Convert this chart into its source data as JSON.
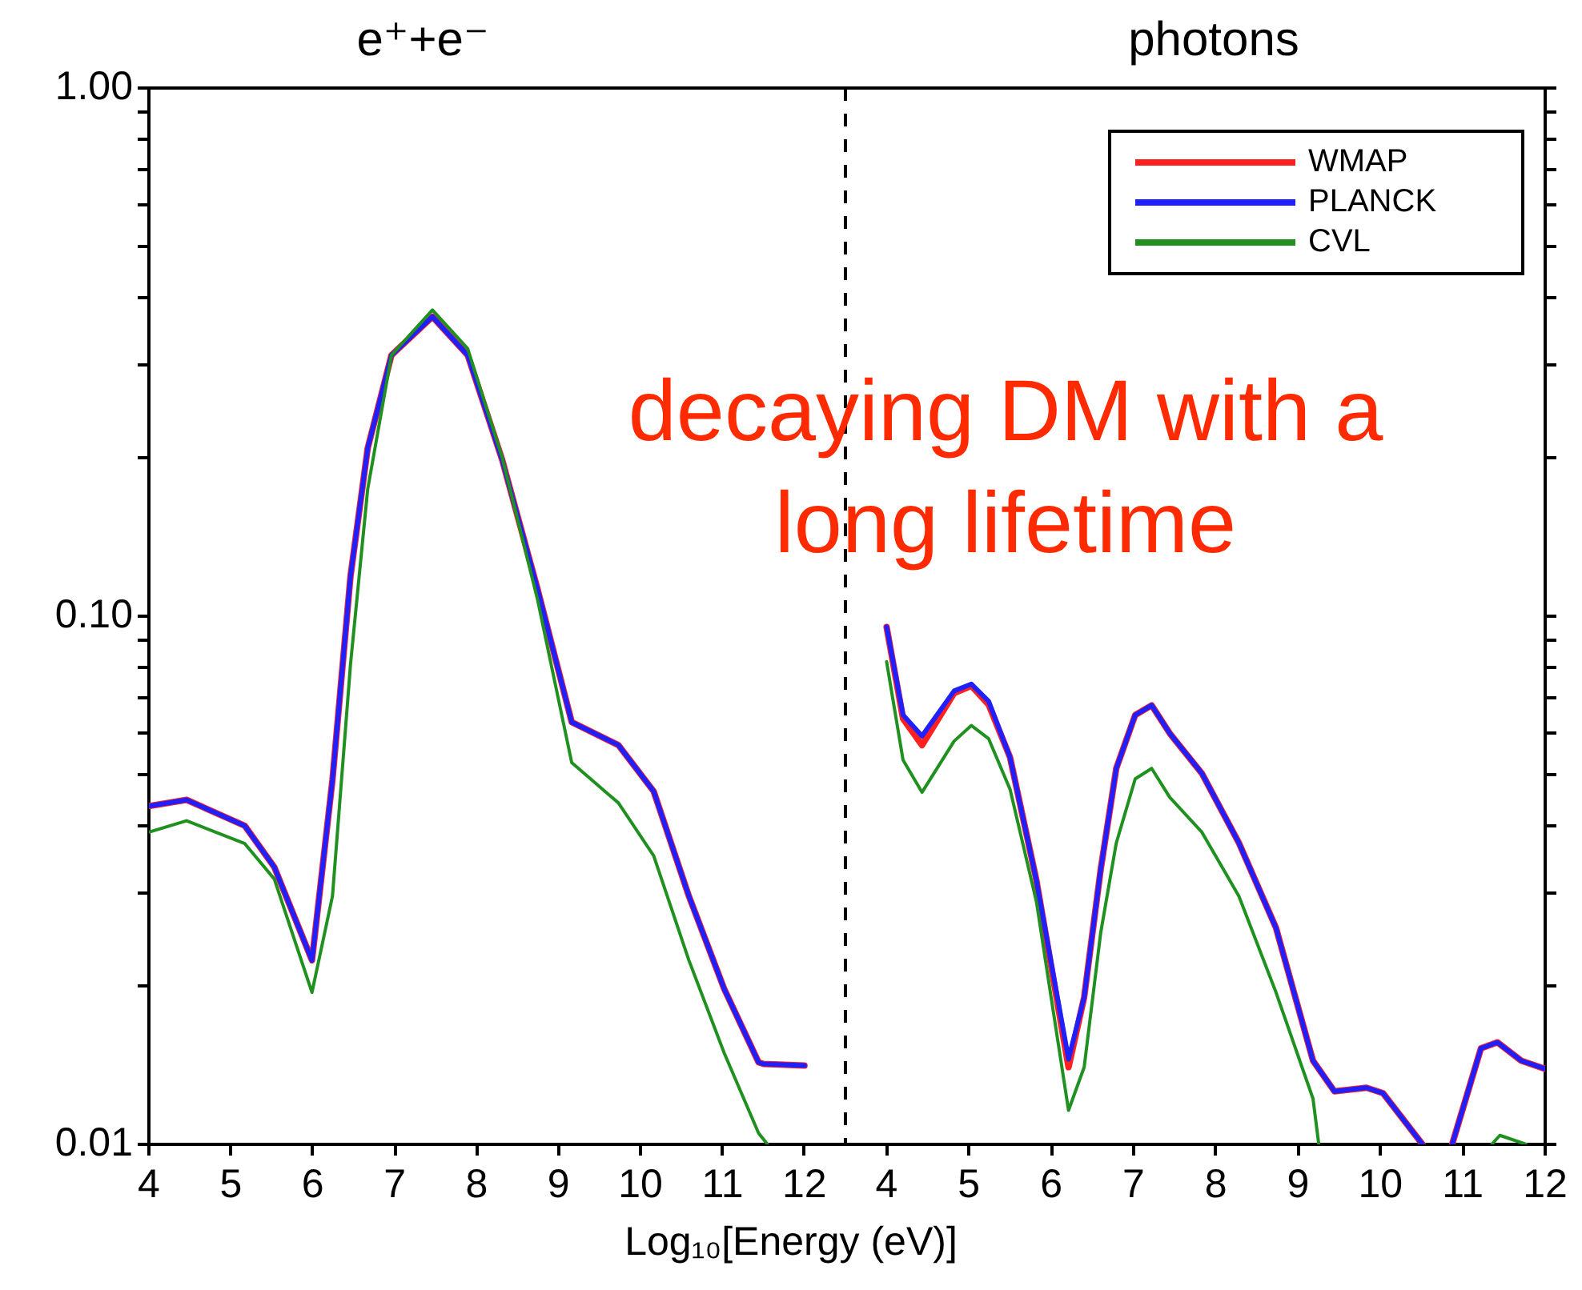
{
  "chart_data": [
    {
      "type": "line",
      "title": "e⁺+e⁻",
      "xlabel": "Log₁₀[Energy (eV)]",
      "log": "y",
      "xlim": [
        4,
        12.5
      ],
      "xticks": [
        4,
        5,
        6,
        7,
        8,
        9,
        10,
        11,
        12
      ],
      "ylim": [
        0.01,
        1
      ],
      "yticks": [
        0.01,
        {
          "value": 0.02,
          "label": null
        },
        {
          "value": 0.03,
          "label": null
        },
        {
          "value": 0.04,
          "label": null
        },
        {
          "value": 0.05,
          "label": null
        },
        {
          "value": 0.06,
          "label": null
        },
        {
          "value": 0.07,
          "label": null
        },
        {
          "value": 0.08,
          "label": null
        },
        {
          "value": 0.09,
          "label": null
        },
        {
          "value": 0.1,
          "label": "0.10"
        },
        {
          "value": 0.2,
          "label": null
        },
        {
          "value": 0.3,
          "label": null
        },
        {
          "value": 0.4,
          "label": null
        },
        {
          "value": 0.5,
          "label": null
        },
        {
          "value": 0.6,
          "label": null
        },
        {
          "value": 0.7,
          "label": null
        },
        {
          "value": 0.8,
          "label": null
        },
        {
          "value": 0.9,
          "label": null
        },
        {
          "value": 1,
          "label": "1.00"
        }
      ],
      "ref_lines": [
        {
          "axis": "x",
          "value": 12.5,
          "color": "#000000",
          "line_style": "dashed"
        }
      ],
      "series": [
        {
          "color": "#ff2020",
          "x": [
            4,
            4.46,
            5.17,
            5.53,
            5.99,
            6.24,
            6.46,
            6.67,
            6.96,
            7.46,
            7.89,
            8.31,
            8.74,
            9.16,
            9.73,
            10.16,
            10.59,
            11.02,
            11.44,
            11.5,
            12
          ],
          "values": [
            0.0437,
            0.0449,
            0.0401,
            0.0335,
            0.0223,
            0.049,
            0.119,
            0.208,
            0.312,
            0.369,
            0.312,
            0.198,
            0.113,
            0.063,
            0.057,
            0.0466,
            0.0295,
            0.0197,
            0.0143,
            0.0142,
            0.0141
          ]
        },
        {
          "color": "#2020ff",
          "x": [
            4,
            4.46,
            5.17,
            5.53,
            5.99,
            6.24,
            6.46,
            6.67,
            6.96,
            7.46,
            7.89,
            8.31,
            8.74,
            9.16,
            9.73,
            10.16,
            10.59,
            11.02,
            11.44,
            11.5,
            12
          ],
          "values": [
            0.0437,
            0.0449,
            0.0401,
            0.0335,
            0.0223,
            0.049,
            0.119,
            0.208,
            0.312,
            0.369,
            0.312,
            0.198,
            0.113,
            0.063,
            0.057,
            0.0466,
            0.0295,
            0.0197,
            0.0143,
            0.0142,
            0.0141
          ]
        },
        {
          "color": "#209020",
          "x": [
            4,
            4.46,
            5.17,
            5.53,
            5.99,
            6.24,
            6.46,
            6.67,
            6.96,
            7.46,
            7.89,
            8.31,
            8.74,
            9.16,
            9.73,
            10.16,
            10.59,
            11.02,
            11.44,
            11.55
          ],
          "values": [
            0.039,
            0.041,
            0.0371,
            0.0318,
            0.0194,
            0.0295,
            0.081,
            0.174,
            0.312,
            0.38,
            0.321,
            0.2,
            0.108,
            0.0528,
            0.0443,
            0.0352,
            0.0223,
            0.0149,
            0.0105,
            0.01
          ]
        }
      ]
    },
    {
      "type": "line",
      "title": "photons",
      "log": "y",
      "xlim": [
        3.5,
        12
      ],
      "xticks": [
        4,
        5,
        6,
        7,
        8,
        9,
        10,
        11,
        12
      ],
      "ylim": [
        0.01,
        1
      ],
      "tick_labels": "x",
      "legend": "top right",
      "yticks": [
        {
          "value": 0.01,
          "label": null
        },
        {
          "value": 0.02,
          "label": null
        },
        {
          "value": 0.03,
          "label": null
        },
        {
          "value": 0.04,
          "label": null
        },
        {
          "value": 0.05,
          "label": null
        },
        {
          "value": 0.06,
          "label": null
        },
        {
          "value": 0.07,
          "label": null
        },
        {
          "value": 0.08,
          "label": null
        },
        {
          "value": 0.09,
          "label": null
        },
        {
          "value": 0.1,
          "label": null
        },
        {
          "value": 0.2,
          "label": null
        },
        {
          "value": 0.3,
          "label": null
        },
        {
          "value": 0.4,
          "label": null
        },
        {
          "value": 0.5,
          "label": null
        },
        {
          "value": 0.6,
          "label": null
        },
        {
          "value": 0.7,
          "label": null
        },
        {
          "value": 0.8,
          "label": null
        },
        {
          "value": 0.9,
          "label": null
        },
        {
          "value": 1,
          "label": null
        }
      ],
      "annotations": [
        "decaying DM with a long lifetime"
      ],
      "series": [
        {
          "name": "WMAP",
          "color": "#ff2020",
          "x": [
            4,
            4.2,
            4.43,
            4.82,
            5.03,
            5.24,
            5.5,
            5.82,
            6.21,
            6.4,
            6.6,
            6.79,
            7.02,
            7.22,
            7.44,
            7.83,
            8.28,
            8.73,
            9.18,
            9.44,
            9.83,
            10.03,
            10.51,
            10.7,
            10.87,
            11.22,
            11.42,
            11.71,
            12
          ],
          "values": [
            0.0954,
            0.064,
            0.057,
            0.0715,
            0.0738,
            0.068,
            0.054,
            0.0316,
            0.014,
            0.019,
            0.0331,
            0.0515,
            0.065,
            0.0678,
            0.06,
            0.0504,
            0.0372,
            0.0257,
            0.0144,
            0.0126,
            0.0128,
            0.0125,
            0.01,
            null,
            0.01,
            0.0152,
            0.0156,
            0.0144,
            0.0139
          ]
        },
        {
          "name": "PLANCK",
          "color": "#2020ff",
          "x": [
            4,
            4.2,
            4.43,
            4.82,
            5.03,
            5.24,
            5.5,
            5.82,
            6.21,
            6.4,
            6.6,
            6.79,
            7.02,
            7.22,
            7.44,
            7.83,
            8.28,
            8.73,
            9.18,
            9.44,
            9.83,
            10.03,
            10.51,
            10.7,
            10.87,
            11.22,
            11.42,
            11.71,
            12
          ],
          "values": [
            0.0954,
            0.065,
            0.0593,
            0.0722,
            0.0744,
            0.069,
            0.054,
            0.0316,
            0.0145,
            0.019,
            0.0331,
            0.0515,
            0.065,
            0.0678,
            0.06,
            0.0504,
            0.0372,
            0.0257,
            0.0144,
            0.0126,
            0.0128,
            0.0125,
            0.01,
            null,
            0.01,
            0.0152,
            0.0156,
            0.0144,
            0.0139
          ]
        },
        {
          "name": "CVL",
          "color": "#209020",
          "x": [
            4,
            4.2,
            4.43,
            4.82,
            5.03,
            5.24,
            5.5,
            5.82,
            6.21,
            6.4,
            6.6,
            6.79,
            7.02,
            7.22,
            7.44,
            7.83,
            8.28,
            8.73,
            9.18,
            9.25,
            10.5,
            11.35,
            11.45,
            11.77
          ],
          "values": [
            0.082,
            0.0534,
            0.0464,
            0.058,
            0.0621,
            0.0586,
            0.047,
            0.0288,
            0.0116,
            0.014,
            0.0251,
            0.0372,
            0.0492,
            0.0515,
            0.0454,
            0.039,
            0.0295,
            0.0194,
            0.0122,
            0.01,
            null,
            0.01,
            0.0104,
            0.01
          ]
        }
      ]
    }
  ]
}
